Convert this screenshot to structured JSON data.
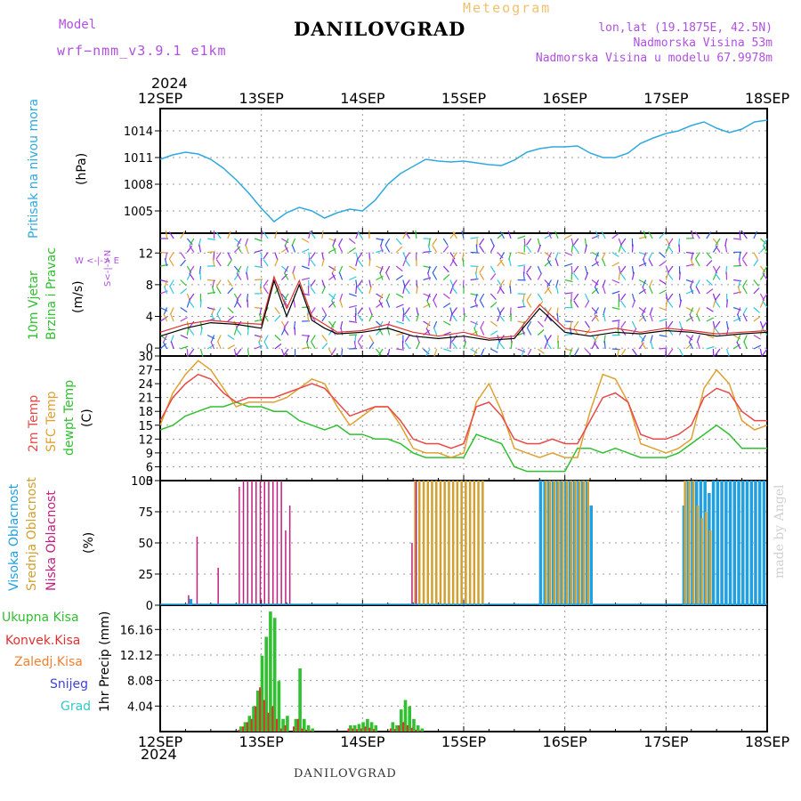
{
  "header": {
    "meteogram_label": "Meteogram",
    "title": "DANILOVGRAD",
    "model_label": "Model",
    "model_name": "wrf−nmm_v3.9.1 e1km",
    "info_lines": [
      "lon,lat (19.1875E, 42.5N)",
      "Nadmorska Visina 53m",
      "Nadmorska Visina u modelu 67.9978m"
    ],
    "year": "2024",
    "footer_title": "DANILOVGRAD",
    "made_by": "made by Angel"
  },
  "colors": {
    "pressure": "#30a8e0",
    "temp2m": "#e84848",
    "sfc_temp": "#e0a030",
    "dewpt": "#30c030",
    "high_cloud": "#20a0e0",
    "mid_cloud": "#d0a030",
    "low_cloud": "#c02080",
    "total_precip": "#30c030",
    "conv_precip": "#e03030",
    "frozen_precip": "#f08030",
    "snow": "#4040e0",
    "hail": "#30c8c8",
    "wind_speed": "#000000",
    "gust": "#e03030"
  },
  "panel_labels": {
    "pressure": {
      "name": "Pritisak na nivou mora",
      "unit": "(hPa)"
    },
    "wind": {
      "name1": "10m Vjetar",
      "name2": "Brzina i Pravac",
      "unit": "(m/s)",
      "compass": "W <-|-> E",
      "compass_v": "S<-|->N"
    },
    "temp": {
      "l1": "2m Temp",
      "l2": "SFC Temp",
      "l3": "dewpt Temp",
      "unit": "(C)"
    },
    "cloud": {
      "l1": "Visoka Oblacnost",
      "l2": "Srednja Oblacnost",
      "l3": "Niska Oblacnost",
      "unit": "(%)"
    },
    "precip": {
      "legend": [
        "Ukupna Kisa",
        "Konvek.Kisa",
        "Zaledj.Kisa",
        "Snijeg",
        "Grad"
      ],
      "unit": "1hr Precip (mm)"
    }
  },
  "chart_data": [
    {
      "type": "line",
      "name": "pressure",
      "x_labels": [
        "12SEP",
        "13SEP",
        "14SEP",
        "15SEP",
        "16SEP",
        "17SEP",
        "18SEP"
      ],
      "ylim": [
        1002.5,
        1016.5
      ],
      "yticks": [
        1005,
        1008,
        1011,
        1014
      ],
      "x_hours": [
        0,
        3,
        6,
        9,
        12,
        15,
        18,
        21,
        24,
        27,
        30,
        33,
        36,
        39,
        42,
        45,
        48,
        51,
        54,
        57,
        60,
        63,
        66,
        69,
        72,
        75,
        78,
        81,
        84,
        87,
        90,
        93,
        96,
        99,
        102,
        105,
        108,
        111,
        114,
        117,
        120,
        123,
        126,
        129,
        132,
        135,
        138,
        141,
        144
      ],
      "values": [
        1010.8,
        1011.3,
        1011.6,
        1011.4,
        1010.8,
        1009.8,
        1008.5,
        1007.0,
        1005.3,
        1003.8,
        1004.8,
        1005.4,
        1005.0,
        1004.2,
        1004.8,
        1005.2,
        1005.0,
        1006.2,
        1008.0,
        1009.2,
        1010.0,
        1010.8,
        1010.6,
        1010.5,
        1010.6,
        1010.4,
        1010.2,
        1010.1,
        1010.7,
        1011.6,
        1012.0,
        1012.2,
        1012.2,
        1012.3,
        1011.5,
        1011.0,
        1011.0,
        1011.5,
        1012.6,
        1013.2,
        1013.7,
        1014.0,
        1014.6,
        1015.0,
        1014.3,
        1013.8,
        1014.2,
        1015.0,
        1015.2
      ]
    },
    {
      "type": "line",
      "name": "wind",
      "x_labels": [
        "12SEP",
        "13SEP",
        "14SEP",
        "15SEP",
        "16SEP",
        "17SEP",
        "18SEP"
      ],
      "ylim": [
        -1,
        14.5
      ],
      "yticks": [
        0,
        4,
        8,
        12
      ],
      "x_hours": [
        0,
        6,
        12,
        18,
        24,
        27,
        30,
        33,
        36,
        39,
        42,
        48,
        54,
        60,
        66,
        72,
        78,
        84,
        90,
        96,
        102,
        108,
        114,
        120,
        126,
        132,
        138,
        144
      ],
      "series": [
        {
          "name": "speed",
          "values": [
            1.5,
            2.5,
            3.2,
            3.0,
            2.5,
            8.5,
            4.0,
            8.0,
            3.5,
            2.5,
            1.8,
            2.0,
            2.5,
            1.5,
            1.2,
            1.5,
            1.0,
            1.2,
            5.0,
            2.0,
            1.5,
            2.0,
            1.8,
            2.2,
            2.0,
            1.5,
            1.8,
            2.0
          ]
        },
        {
          "name": "gust",
          "values": [
            2.0,
            3.0,
            3.5,
            3.2,
            3.0,
            9.0,
            5.0,
            8.5,
            4.0,
            3.0,
            2.0,
            2.2,
            3.0,
            2.0,
            1.5,
            2.0,
            1.2,
            1.5,
            5.5,
            2.5,
            2.0,
            2.5,
            2.0,
            2.5,
            2.2,
            1.8,
            2.0,
            2.2
          ]
        }
      ]
    },
    {
      "type": "line",
      "name": "temperature",
      "x_labels": [
        "12SEP",
        "13SEP",
        "14SEP",
        "15SEP",
        "16SEP",
        "17SEP",
        "18SEP"
      ],
      "ylim": [
        3,
        30
      ],
      "yticks": [
        3,
        6,
        9,
        12,
        15,
        18,
        21,
        24,
        27,
        30
      ],
      "x_hours": [
        0,
        3,
        6,
        9,
        12,
        15,
        18,
        21,
        24,
        27,
        30,
        33,
        36,
        39,
        42,
        45,
        48,
        51,
        54,
        57,
        60,
        63,
        66,
        69,
        72,
        75,
        78,
        81,
        84,
        87,
        90,
        93,
        96,
        99,
        102,
        105,
        108,
        111,
        114,
        117,
        120,
        123,
        126,
        129,
        132,
        135,
        138,
        141,
        144
      ],
      "series": [
        {
          "name": "2m",
          "values": [
            16,
            21,
            24,
            26,
            25,
            22,
            20,
            21,
            21,
            21,
            22,
            23,
            24,
            23,
            20,
            17,
            18,
            19,
            19,
            16,
            12,
            11,
            11,
            10,
            11,
            19,
            20,
            17,
            12,
            11,
            11,
            12,
            11,
            11,
            16,
            21,
            22,
            20,
            13,
            12,
            12,
            13,
            15,
            21,
            23,
            22,
            18,
            16,
            16
          ]
        },
        {
          "name": "SFC",
          "values": [
            15,
            22,
            26,
            29,
            27,
            23,
            19,
            20,
            20,
            20,
            21,
            23,
            25,
            24,
            19,
            15,
            17,
            19,
            19,
            15,
            10,
            9,
            9,
            8,
            9,
            20,
            24,
            18,
            10,
            9,
            8,
            9,
            8,
            8,
            18,
            26,
            25,
            20,
            11,
            10,
            9,
            10,
            12,
            23,
            27,
            24,
            16,
            14,
            15
          ]
        },
        {
          "name": "dewpt",
          "values": [
            14,
            15,
            17,
            18,
            19,
            19,
            20,
            19,
            19,
            18,
            18,
            16,
            15,
            14,
            15,
            13,
            13,
            12,
            12,
            11,
            9,
            8,
            8,
            8,
            8,
            13,
            12,
            11,
            6,
            5,
            5,
            5,
            5,
            10,
            10,
            9,
            10,
            9,
            8,
            8,
            8,
            9,
            11,
            13,
            15,
            13,
            10,
            10,
            10
          ]
        }
      ]
    },
    {
      "type": "bar",
      "name": "clouds",
      "x_labels": [
        "12SEP",
        "13SEP",
        "14SEP",
        "15SEP",
        "16SEP",
        "17SEP",
        "18SEP"
      ],
      "ylim": [
        0,
        100
      ],
      "yticks": [
        0,
        25,
        50,
        75,
        100
      ],
      "series": [
        {
          "name": "high",
          "values": [
            0,
            0,
            0,
            0,
            0,
            0,
            0,
            5,
            0,
            0,
            0,
            0,
            0,
            0,
            0,
            0,
            0,
            0,
            0,
            0,
            0,
            0,
            0,
            0,
            0,
            0,
            0,
            0,
            0,
            0,
            0,
            0,
            0,
            0,
            0,
            0,
            0,
            0,
            0,
            0,
            0,
            0,
            0,
            0,
            0,
            0,
            0,
            0,
            0,
            0,
            0,
            0,
            0,
            0,
            0,
            0,
            0,
            0,
            0,
            0,
            0,
            0,
            0,
            0,
            0,
            0,
            0,
            0,
            0,
            0,
            0,
            0,
            0,
            0,
            0,
            0,
            0,
            0,
            0,
            0,
            0,
            0,
            0,
            0,
            0,
            0,
            0,
            0,
            0,
            0,
            100,
            100,
            100,
            100,
            100,
            100,
            100,
            100,
            100,
            100,
            100,
            100,
            80,
            0,
            0,
            0,
            0,
            0,
            0,
            0,
            0,
            0,
            0,
            0,
            0,
            0,
            0,
            0,
            0,
            0,
            0,
            0,
            0,
            0,
            80,
            100,
            100,
            100,
            100,
            100,
            90,
            100,
            100,
            100,
            100,
            100,
            100,
            100,
            100,
            100,
            100,
            100,
            100,
            100
          ]
        },
        {
          "name": "mid",
          "values": [
            0,
            0,
            0,
            0,
            0,
            0,
            0,
            0,
            0,
            0,
            0,
            0,
            0,
            0,
            0,
            0,
            0,
            0,
            0,
            0,
            0,
            0,
            0,
            0,
            0,
            0,
            0,
            0,
            0,
            0,
            0,
            0,
            0,
            0,
            0,
            0,
            0,
            0,
            0,
            0,
            0,
            0,
            0,
            0,
            0,
            0,
            0,
            0,
            0,
            0,
            0,
            0,
            0,
            0,
            0,
            0,
            0,
            0,
            0,
            0,
            100,
            100,
            100,
            100,
            100,
            100,
            100,
            100,
            100,
            100,
            100,
            100,
            100,
            100,
            100,
            100,
            100,
            0,
            0,
            0,
            0,
            0,
            0,
            0,
            0,
            0,
            0,
            0,
            0,
            0,
            0,
            100,
            100,
            100,
            100,
            100,
            100,
            100,
            100,
            100,
            100,
            100,
            0,
            0,
            0,
            0,
            0,
            0,
            0,
            0,
            0,
            0,
            0,
            0,
            0,
            0,
            0,
            0,
            0,
            0,
            0,
            0,
            0,
            0,
            100,
            100,
            100,
            80,
            70,
            75,
            60,
            0,
            0,
            0,
            0,
            0,
            0,
            0,
            0,
            0,
            0,
            0,
            0,
            0
          ]
        },
        {
          "name": "low",
          "values": [
            0,
            0,
            0,
            0,
            0,
            0,
            8,
            0,
            55,
            0,
            0,
            0,
            0,
            30,
            0,
            0,
            0,
            0,
            95,
            100,
            100,
            100,
            100,
            100,
            100,
            100,
            100,
            100,
            100,
            60,
            80,
            0,
            0,
            0,
            0,
            0,
            0,
            0,
            0,
            0,
            0,
            0,
            0,
            0,
            0,
            0,
            0,
            0,
            0,
            0,
            0,
            0,
            0,
            0,
            0,
            0,
            0,
            0,
            0,
            50,
            100,
            0,
            0,
            0,
            0,
            0,
            0,
            0,
            0,
            0,
            0,
            0,
            0,
            0,
            0,
            0,
            0,
            0,
            0,
            0,
            0,
            0,
            0,
            0,
            0,
            0,
            0,
            0,
            0,
            0,
            0,
            0,
            0,
            0,
            0,
            0,
            0,
            0,
            0,
            0,
            0,
            0,
            0,
            0,
            0,
            0,
            0,
            0,
            0,
            0,
            0,
            0,
            0,
            0,
            0,
            0,
            0,
            0,
            0,
            0,
            0,
            0,
            0,
            0,
            0,
            0,
            0,
            0,
            0,
            0,
            0,
            0,
            0,
            0,
            0,
            0,
            0,
            0,
            0,
            0,
            0,
            0,
            0,
            0
          ]
        }
      ]
    },
    {
      "type": "bar",
      "name": "precipitation",
      "x_labels": [
        "12SEP",
        "13SEP",
        "14SEP",
        "15SEP",
        "16SEP",
        "17SEP",
        "18SEP"
      ],
      "ylim": [
        0,
        20
      ],
      "yticks": [
        4.04,
        8.08,
        12.12,
        16.16
      ],
      "x_hours": [
        19,
        20,
        21,
        22,
        23,
        24,
        25,
        26,
        27,
        28,
        29,
        30,
        32,
        33,
        34,
        35,
        36,
        45,
        46,
        47,
        48,
        49,
        50,
        51,
        55,
        56,
        57,
        58,
        59,
        60,
        61,
        62
      ],
      "series": [
        {
          "name": "total",
          "values": [
            0.8,
            1.5,
            2.5,
            4.0,
            6.5,
            12.0,
            15.0,
            19.0,
            18.0,
            8.0,
            2.0,
            2.5,
            2.0,
            10.0,
            2.0,
            1.0,
            0.5,
            1.0,
            1.0,
            1.2,
            1.5,
            2.0,
            1.5,
            1.0,
            1.5,
            1.0,
            3.5,
            5.0,
            4.0,
            2.0,
            1.0,
            0.5
          ]
        },
        {
          "name": "convective",
          "values": [
            0.3,
            0.8,
            1.5,
            2.0,
            4.0,
            7.0,
            5.0,
            3.0,
            4.0,
            2.0,
            0.5,
            1.0,
            0.8,
            2.0,
            0.5,
            0.3,
            0.2,
            0.5,
            0.5,
            0.4,
            0.5,
            0.8,
            0.6,
            0.4,
            0.5,
            0.4,
            1.0,
            1.5,
            1.0,
            0.6,
            0.3,
            0.2
          ]
        }
      ]
    }
  ]
}
